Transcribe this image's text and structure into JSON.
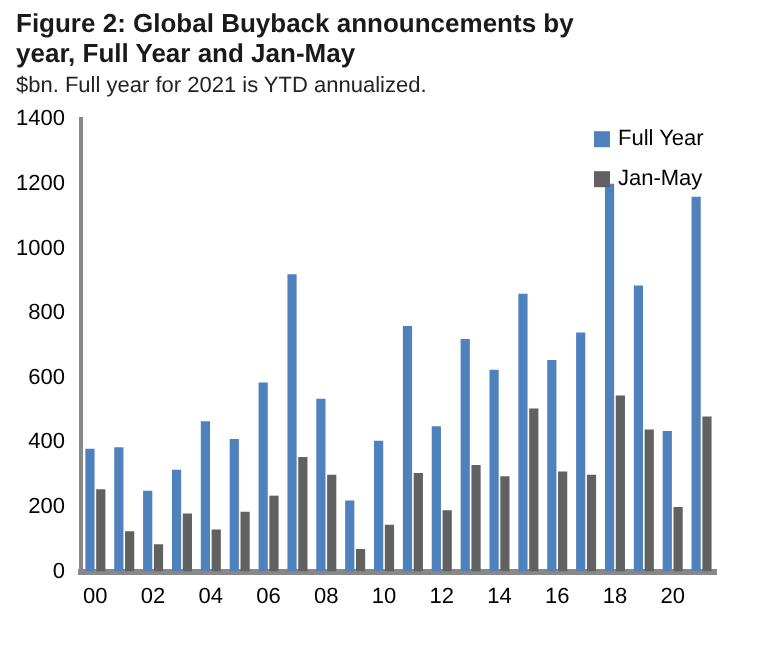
{
  "chart_data": {
    "type": "bar",
    "title": "Figure 2: Global Buyback announcements by year, Full Year and Jan-May",
    "subtitle": "$bn. Full year for 2021 is YTD annualized.",
    "categories": [
      "00",
      null,
      "02",
      null,
      "04",
      null,
      "06",
      null,
      "08",
      null,
      "10",
      null,
      "12",
      null,
      "14",
      null,
      "16",
      null,
      "18",
      null,
      "20",
      null
    ],
    "series": [
      {
        "name": "Full Year",
        "color": "#4f81bd",
        "values": [
          380,
          385,
          250,
          315,
          465,
          410,
          585,
          920,
          535,
          220,
          405,
          760,
          450,
          720,
          625,
          860,
          655,
          740,
          1200,
          885,
          435,
          1160
        ]
      },
      {
        "name": "Jan-May",
        "color": "#616161",
        "values": [
          255,
          125,
          85,
          180,
          130,
          185,
          235,
          355,
          300,
          70,
          145,
          305,
          190,
          330,
          295,
          505,
          310,
          300,
          545,
          440,
          200,
          480
        ]
      }
    ],
    "ylim": [
      0,
      1400
    ],
    "yticks": [
      0,
      200,
      400,
      600,
      800,
      1000,
      1200,
      1400
    ],
    "grid": false,
    "legend": "top right"
  }
}
